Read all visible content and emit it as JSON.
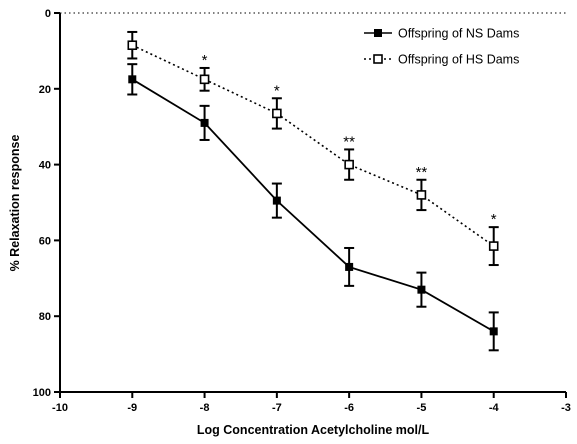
{
  "chart_data": {
    "type": "line",
    "xlabel": "Log Concentration Acetylcholine mol/L",
    "ylabel": "% Relaxation response",
    "xlim": [
      -10,
      -3
    ],
    "ylim": [
      0,
      100
    ],
    "y_inverted": true,
    "x_ticks": [
      "-10",
      "-9",
      "-8",
      "-7",
      "-6",
      "-5",
      "-4",
      "-3"
    ],
    "y_ticks": [
      "0",
      "20",
      "40",
      "60",
      "80",
      "100"
    ],
    "x": [
      -9,
      -8,
      -7,
      -6,
      -5,
      -4
    ],
    "legend_position": "top-right",
    "series": [
      {
        "name": "Offspring of NS Dams",
        "values": [
          17.5,
          29,
          49.5,
          67,
          73,
          84
        ],
        "errors": [
          4,
          4.5,
          4.5,
          5,
          4.5,
          5
        ],
        "line_style": "solid",
        "marker": "filled-square"
      },
      {
        "name": "Offspring of HS Dams",
        "values": [
          8.5,
          17.5,
          26.5,
          40,
          48,
          61.5
        ],
        "errors": [
          3.5,
          3,
          4,
          4,
          4,
          5
        ],
        "line_style": "dotted",
        "marker": "open-square"
      }
    ],
    "annotations": [
      {
        "x": -8,
        "text": "*"
      },
      {
        "x": -7,
        "text": "*"
      },
      {
        "x": -6,
        "text": "**"
      },
      {
        "x": -5,
        "text": "**"
      },
      {
        "x": -4,
        "text": "*"
      }
    ]
  }
}
